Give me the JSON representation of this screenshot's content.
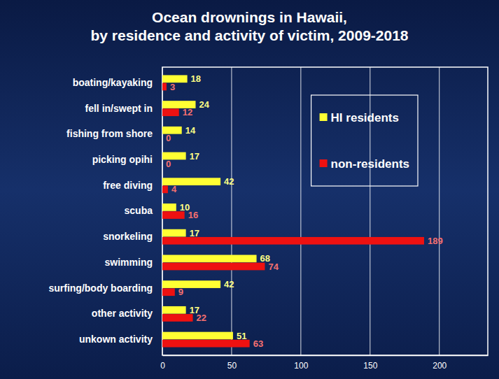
{
  "chart_data": {
    "type": "bar",
    "orientation": "horizontal",
    "title": "Ocean drownings in Hawaii,",
    "subtitle": "by residence and activity of victim, 2009-2018",
    "categories": [
      "boating/kayaking",
      "fell in/swept in",
      "fishing from shore",
      "picking opihi",
      "free diving",
      "scuba",
      "snorkeling",
      "swimming",
      "surfing/body boarding",
      "other activity",
      "unkown activity"
    ],
    "series": [
      {
        "name": "HI residents",
        "color": "#ffff33",
        "values": [
          18,
          24,
          14,
          17,
          42,
          10,
          17,
          68,
          42,
          17,
          51
        ]
      },
      {
        "name": "non-residents",
        "color": "#ee1111",
        "values": [
          3,
          12,
          0,
          0,
          4,
          16,
          189,
          74,
          9,
          22,
          63
        ]
      }
    ],
    "xlim": [
      0,
      235
    ],
    "xticks": [
      0,
      50,
      100,
      150,
      200
    ],
    "grid": true,
    "legend": "upper right",
    "data_labels": true
  }
}
